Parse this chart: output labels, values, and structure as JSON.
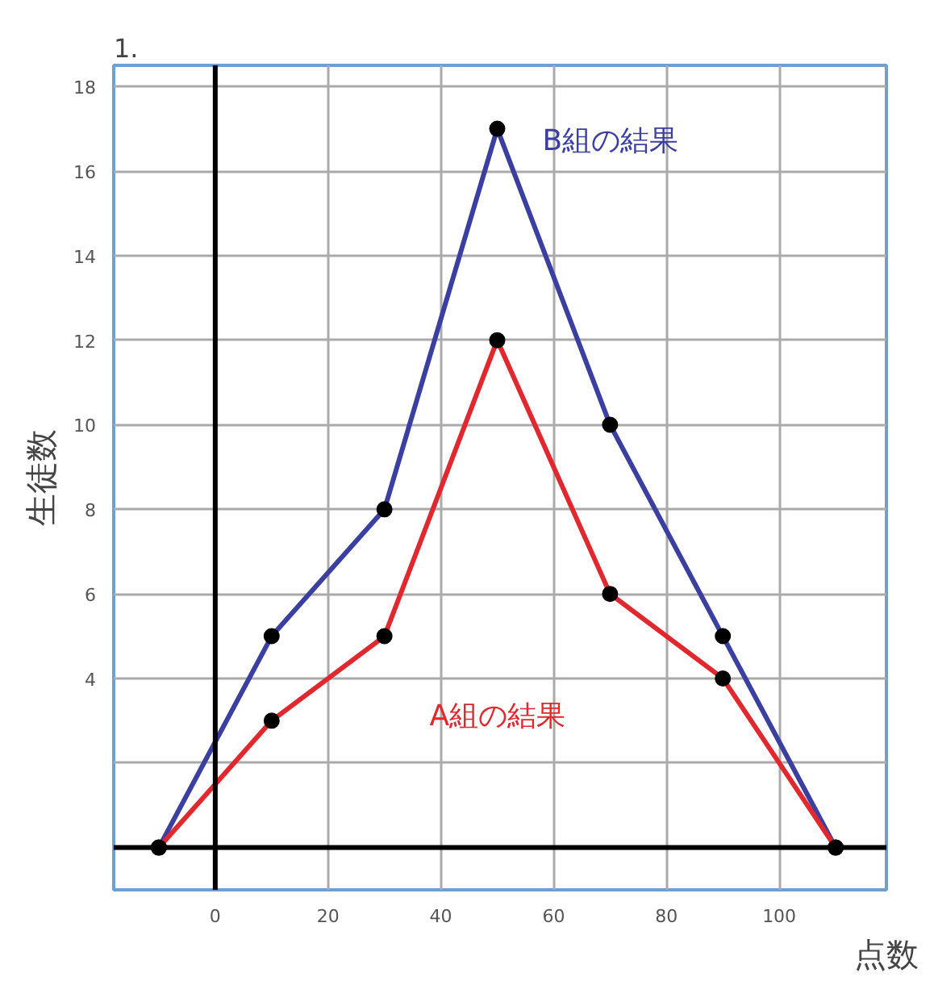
{
  "chart_data": {
    "type": "line",
    "title": "1.",
    "xlabel": "点数",
    "ylabel": "生徒数",
    "x": [
      -10,
      10,
      30,
      50,
      70,
      90,
      110
    ],
    "series": [
      {
        "name": "B組の結果",
        "color": "#3b3fa0",
        "values": [
          0,
          5,
          8,
          17,
          10,
          5,
          0
        ]
      },
      {
        "name": "A組の結果",
        "color": "#e0282e",
        "values": [
          0,
          3,
          5,
          12,
          6,
          4,
          0
        ]
      }
    ],
    "xlim": [
      -18,
      119
    ],
    "ylim": [
      -1,
      18.5
    ],
    "xticks": [
      0,
      20,
      40,
      60,
      80,
      100
    ],
    "yticks": [
      {
        "value": 0,
        "label": null
      },
      {
        "value": 2,
        "label": null
      },
      4,
      6,
      8,
      10,
      12,
      14,
      16,
      18
    ],
    "grid": true,
    "marker": "circle",
    "line_style": "solid"
  }
}
